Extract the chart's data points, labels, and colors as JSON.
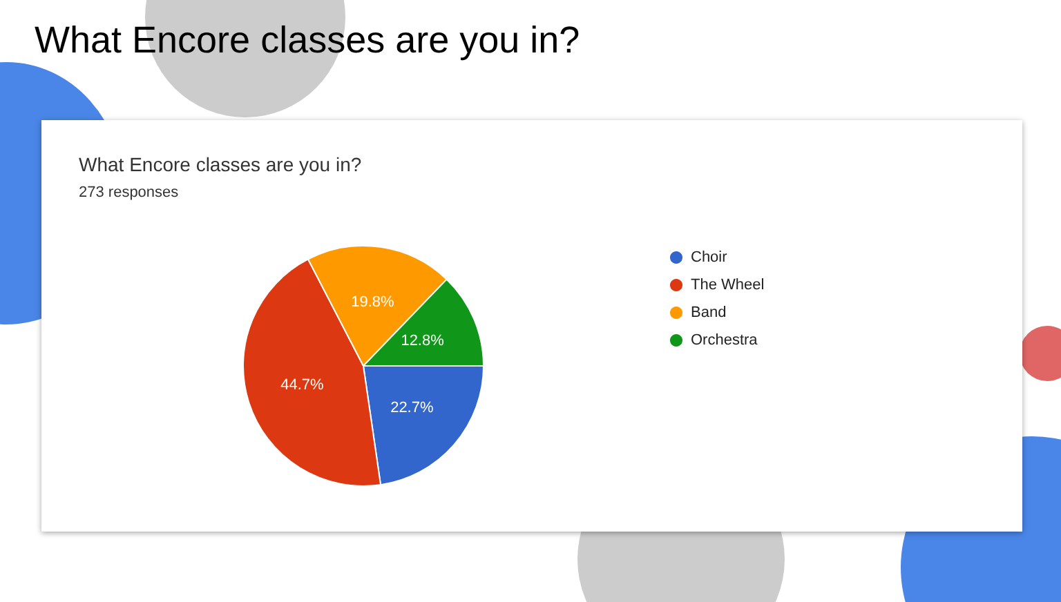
{
  "chart_data": {
    "type": "pie",
    "title": "What Encore classes are you in?",
    "subtitle": "273 responses",
    "annotations": [
      "What Encore classes are you in?"
    ],
    "categories": [
      "Choir",
      "The Wheel",
      "Band",
      "Orchestra"
    ],
    "values": [
      22.7,
      44.7,
      19.8,
      12.8
    ],
    "colors": [
      "#3366cc",
      "#dc3912",
      "#ff9900",
      "#109618"
    ],
    "value_labels": [
      "22.7%",
      "44.7%",
      "19.8%",
      "12.8%"
    ],
    "legend": "right"
  }
}
